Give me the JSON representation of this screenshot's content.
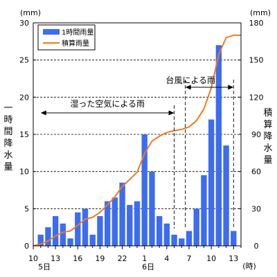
{
  "chart_data": {
    "type": "bar+line",
    "left_unit": "(mm)",
    "right_unit": "(mm)",
    "left_axis_label": [
      "一",
      "時",
      "間",
      "降",
      "水",
      "量"
    ],
    "right_axis_label": [
      "積",
      "算",
      "降",
      "水",
      "量"
    ],
    "left_ticks": [
      0,
      5,
      10,
      15,
      20,
      25,
      30
    ],
    "right_ticks": [
      0,
      30,
      60,
      90,
      120,
      150,
      180
    ],
    "left_ylim": [
      0,
      30
    ],
    "right_ylim": [
      0,
      180
    ],
    "x_tick_labels": [
      {
        "hour": 0,
        "label": "10"
      },
      {
        "hour": 3,
        "label": "13"
      },
      {
        "hour": 6,
        "label": "16"
      },
      {
        "hour": 9,
        "label": "19"
      },
      {
        "hour": 12,
        "label": "22"
      },
      {
        "hour": 15,
        "label": "1"
      },
      {
        "hour": 18,
        "label": "4"
      },
      {
        "hour": 21,
        "label": "7"
      },
      {
        "hour": 24,
        "label": "10"
      },
      {
        "hour": 27,
        "label": "13"
      }
    ],
    "day_labels": [
      {
        "hour": 1.5,
        "label": "5日"
      },
      {
        "hour": 15.5,
        "label": "6日"
      }
    ],
    "x_unit": "(時)",
    "legend": {
      "bar": "1時間雨量",
      "line": "積算雨量"
    },
    "colors": {
      "bar": "#3d6cf0",
      "line": "#f07a1e"
    },
    "bars": {
      "start_hour": 1,
      "values": [
        1.5,
        2.5,
        4.0,
        3.0,
        1.0,
        4.5,
        5.0,
        1.5,
        4.0,
        6.0,
        6.5,
        8.5,
        5.5,
        6.0,
        15.0,
        10.0,
        4.0,
        3.0,
        1.5,
        1.0,
        2.0,
        5.0,
        9.5,
        17.0,
        27.0,
        13.5,
        2.0
      ]
    },
    "line": {
      "points": [
        [
          0,
          0
        ],
        [
          1,
          1.5
        ],
        [
          2,
          4
        ],
        [
          3,
          8
        ],
        [
          4,
          11
        ],
        [
          5,
          12
        ],
        [
          6,
          16.5
        ],
        [
          7,
          21.5
        ],
        [
          8,
          23
        ],
        [
          9,
          27
        ],
        [
          10,
          33
        ],
        [
          11,
          39.5
        ],
        [
          12,
          48
        ],
        [
          13,
          53.5
        ],
        [
          14,
          59.5
        ],
        [
          15,
          74.5
        ],
        [
          16,
          84.5
        ],
        [
          17,
          88.5
        ],
        [
          18,
          91.5
        ],
        [
          19,
          93
        ],
        [
          20,
          94
        ],
        [
          21,
          96
        ],
        [
          22,
          101
        ],
        [
          23,
          110.5
        ],
        [
          24,
          127.5
        ],
        [
          25,
          154.5
        ],
        [
          26,
          168
        ],
        [
          27,
          170
        ],
        [
          28,
          170
        ]
      ]
    },
    "annotations": [
      {
        "label": "湿った空気による雨",
        "from_hour": 1,
        "to_hour": 19
      },
      {
        "label": "台風による雨",
        "from_hour": 20.5,
        "to_hour": 27
      }
    ]
  }
}
